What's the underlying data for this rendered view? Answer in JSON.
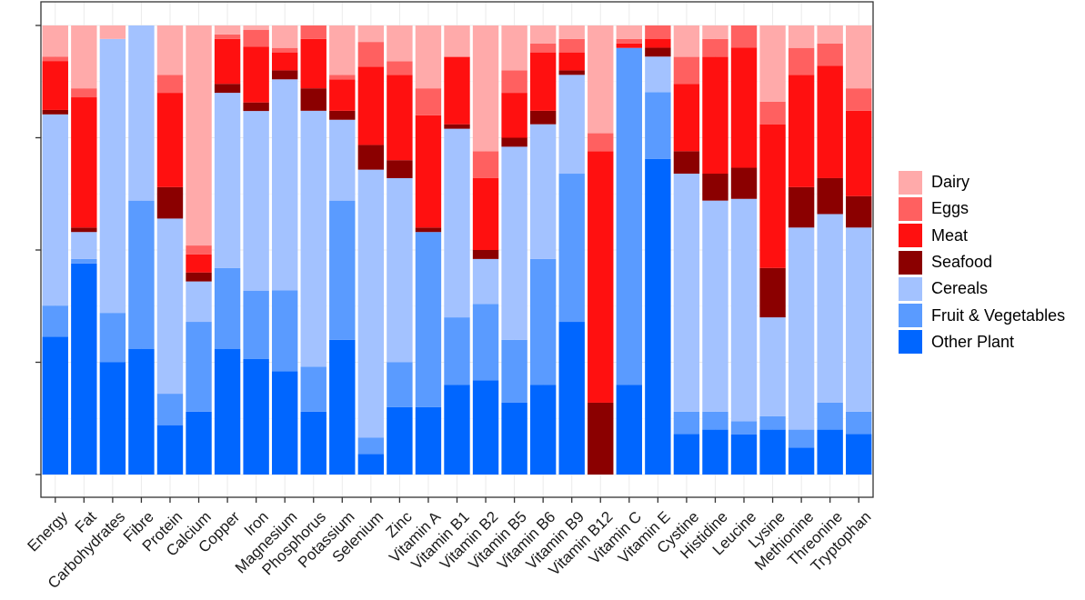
{
  "chart_data": {
    "type": "bar",
    "stacked": true,
    "normalized": true,
    "ylim": [
      0,
      1
    ],
    "y_ticks": [
      0,
      0.25,
      0.5,
      0.75,
      1
    ],
    "y_tick_labels_visible": false,
    "grid": true,
    "legend_placement": "right",
    "categories": [
      "Energy",
      "Fat",
      "Carbohydrates",
      "Fibre",
      "Protein",
      "Calcium",
      "Copper",
      "Iron",
      "Magnesium",
      "Phosphorus",
      "Potassium",
      "Selenium",
      "Zinc",
      "Vitamin A",
      "Vitamin B1",
      "Vitamin B2",
      "Vitamin B5",
      "Vitamin B6",
      "Vitamin B9",
      "Vitamin B12",
      "Vitamin C",
      "Vitamin E",
      "Cystine",
      "Histidine",
      "Leucine",
      "Lysine",
      "Methionine",
      "Threonine",
      "Tryptophan"
    ],
    "series": [
      {
        "name": "Other Plant",
        "color": "#0066ff",
        "values": [
          0.31,
          0.47,
          0.25,
          0.28,
          0.11,
          0.14,
          0.28,
          0.27,
          0.23,
          0.14,
          0.3,
          0.05,
          0.15,
          0.15,
          0.2,
          0.21,
          0.16,
          0.2,
          0.34,
          0.0,
          0.2,
          0.71,
          0.09,
          0.1,
          0.09,
          0.1,
          0.06,
          0.1,
          0.09
        ]
      },
      {
        "name": "Fruit & Vegetables",
        "color": "#5a9bff",
        "values": [
          0.07,
          0.01,
          0.11,
          0.33,
          0.07,
          0.2,
          0.18,
          0.16,
          0.18,
          0.1,
          0.31,
          0.04,
          0.1,
          0.39,
          0.15,
          0.17,
          0.14,
          0.28,
          0.33,
          0.0,
          0.75,
          0.15,
          0.05,
          0.04,
          0.03,
          0.03,
          0.04,
          0.06,
          0.05
        ]
      },
      {
        "name": "Cereals",
        "color": "#a3c2ff",
        "values": [
          0.43,
          0.06,
          0.61,
          0.39,
          0.39,
          0.09,
          0.39,
          0.42,
          0.47,
          0.57,
          0.18,
          0.65,
          0.41,
          0.0,
          0.42,
          0.1,
          0.43,
          0.3,
          0.22,
          0.0,
          0.0,
          0.08,
          0.53,
          0.47,
          0.5,
          0.22,
          0.45,
          0.42,
          0.41
        ]
      },
      {
        "name": "Seafood",
        "color": "#8b0000",
        "values": [
          0.01,
          0.01,
          0.0,
          0.0,
          0.07,
          0.02,
          0.02,
          0.02,
          0.02,
          0.05,
          0.02,
          0.06,
          0.04,
          0.01,
          0.01,
          0.02,
          0.02,
          0.03,
          0.01,
          0.16,
          0.0,
          0.02,
          0.05,
          0.06,
          0.07,
          0.11,
          0.09,
          0.08,
          0.07
        ]
      },
      {
        "name": "Meat",
        "color": "#ff1010",
        "values": [
          0.11,
          0.29,
          0.0,
          0.0,
          0.21,
          0.04,
          0.1,
          0.13,
          0.04,
          0.11,
          0.07,
          0.19,
          0.19,
          0.25,
          0.15,
          0.16,
          0.1,
          0.13,
          0.04,
          0.56,
          0.01,
          0.02,
          0.15,
          0.26,
          0.27,
          0.32,
          0.25,
          0.25,
          0.19
        ]
      },
      {
        "name": "Eggs",
        "color": "#ff6060",
        "values": [
          0.01,
          0.02,
          0.0,
          0.0,
          0.04,
          0.02,
          0.01,
          0.04,
          0.01,
          0.03,
          0.01,
          0.06,
          0.03,
          0.06,
          0.0,
          0.06,
          0.05,
          0.02,
          0.03,
          0.04,
          0.01,
          0.03,
          0.06,
          0.04,
          0.05,
          0.05,
          0.06,
          0.05,
          0.05
        ]
      },
      {
        "name": "Dairy",
        "color": "#ffaaaa",
        "values": [
          0.07,
          0.14,
          0.03,
          0.0,
          0.11,
          0.49,
          0.02,
          0.01,
          0.05,
          0.0,
          0.11,
          0.04,
          0.08,
          0.14,
          0.07,
          0.28,
          0.1,
          0.04,
          0.03,
          0.24,
          0.03,
          0.0,
          0.07,
          0.03,
          0.0,
          0.17,
          0.05,
          0.04,
          0.14
        ]
      }
    ],
    "legend_order": [
      "Dairy",
      "Eggs",
      "Meat",
      "Seafood",
      "Cereals",
      "Fruit & Vegetables",
      "Other Plant"
    ]
  }
}
